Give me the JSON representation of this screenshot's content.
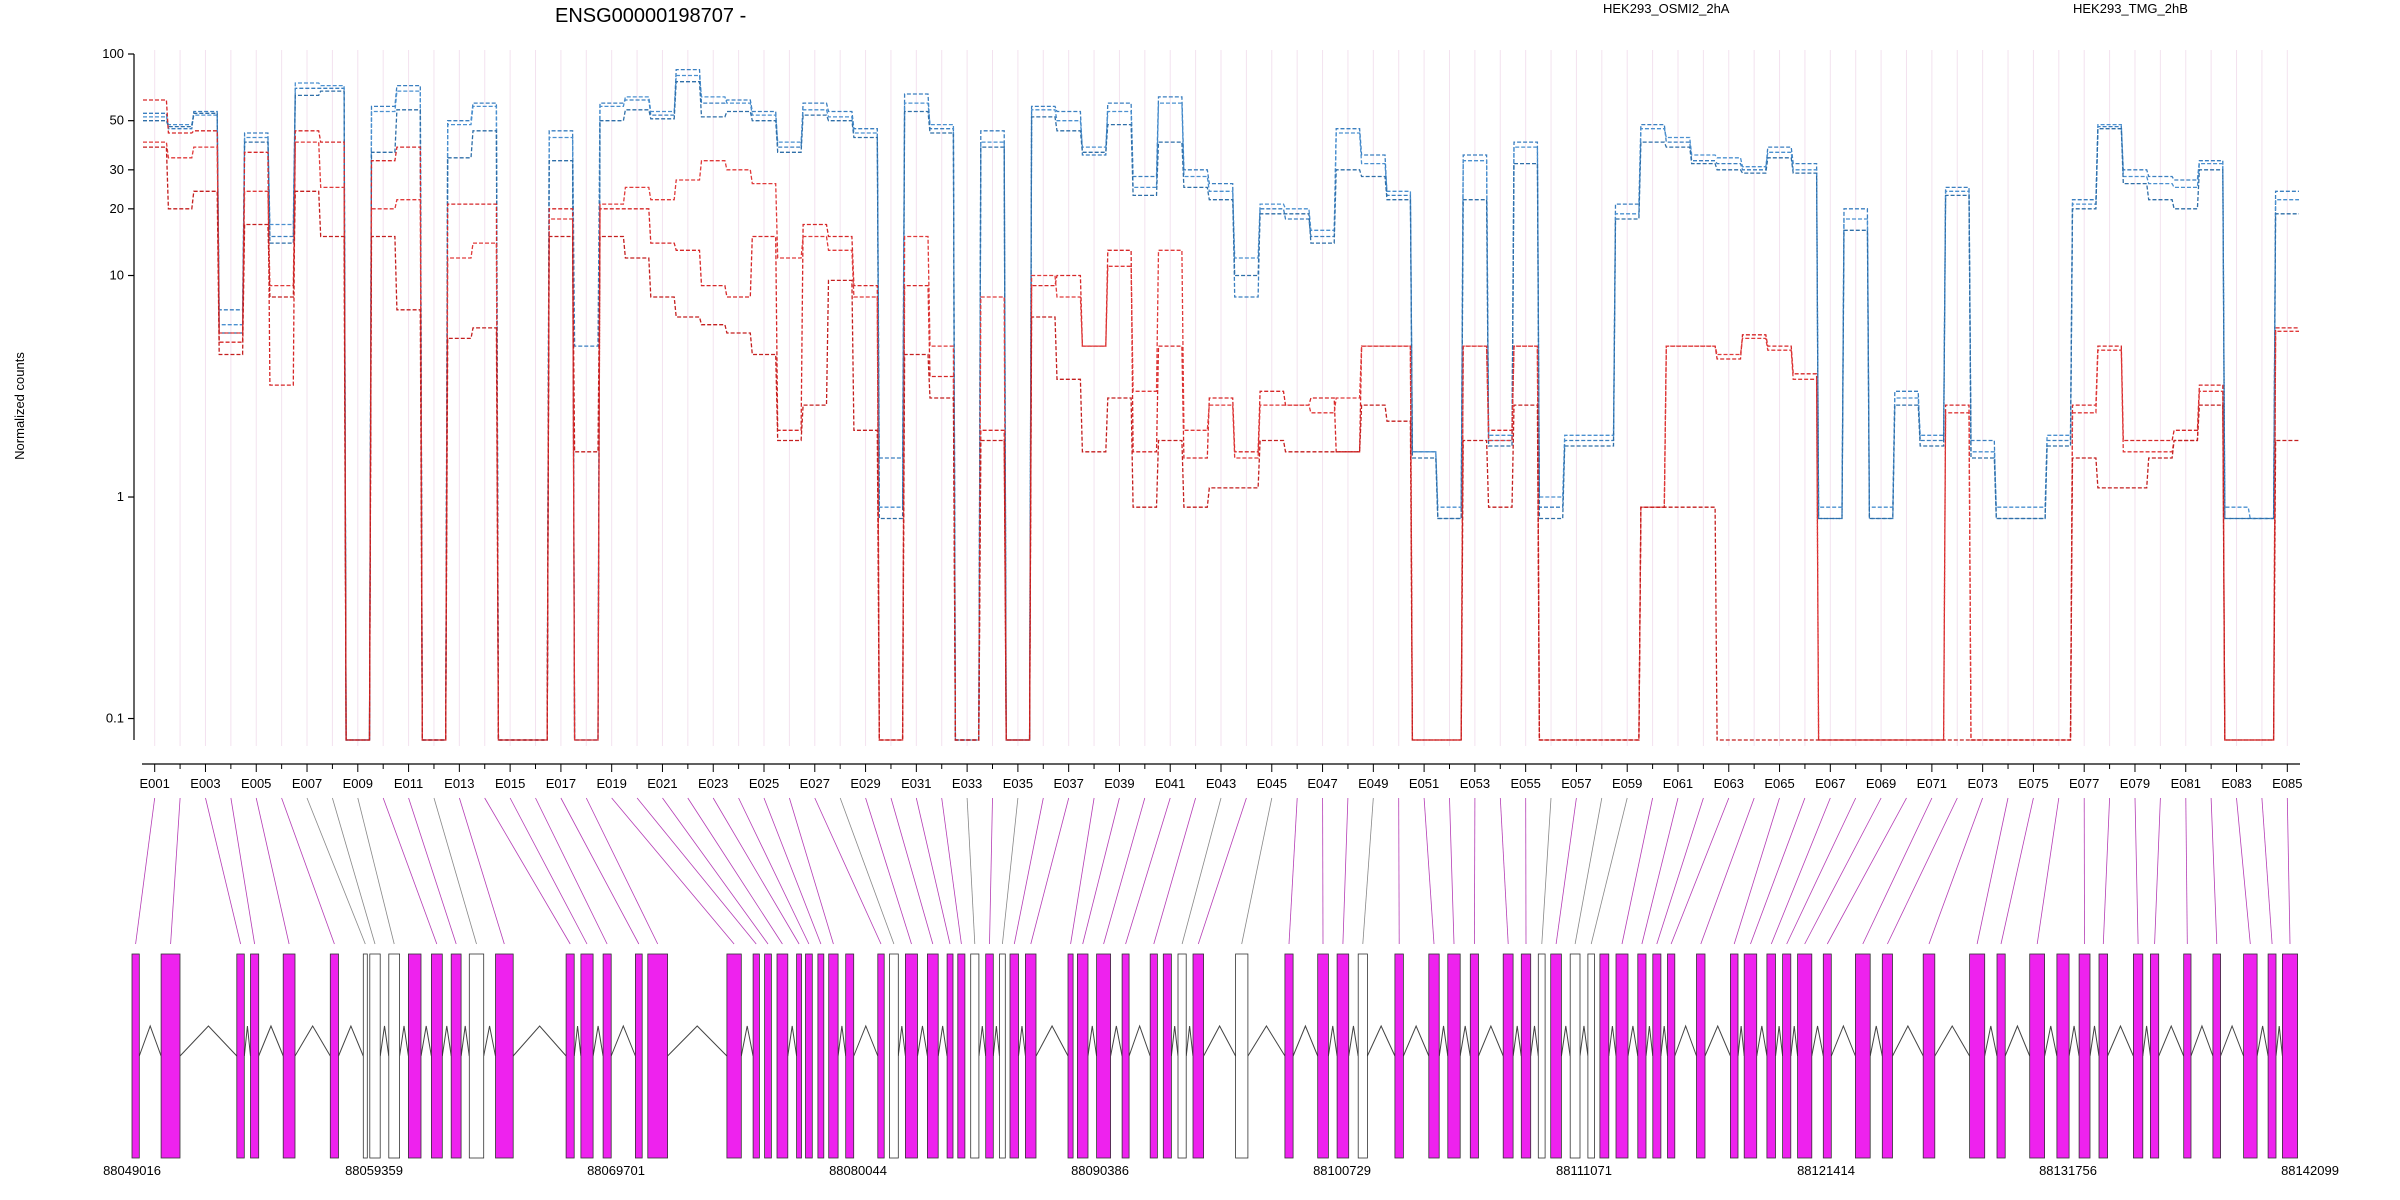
{
  "chart_data": {
    "type": "line",
    "title": "ENSG00000198707 -",
    "ylabel": "Normalized counts",
    "yscale": "log",
    "ylim": [
      0.08,
      100
    ],
    "yticks": [
      {
        "v": 0.1,
        "label": "0.1"
      },
      {
        "v": 1,
        "label": "1"
      },
      {
        "v": 10,
        "label": "10"
      },
      {
        "v": 20,
        "label": "20"
      },
      {
        "v": 30,
        "label": "30"
      },
      {
        "v": 50,
        "label": "50"
      },
      {
        "v": 100,
        "label": "100"
      }
    ],
    "exon_ticks": [
      "E001",
      "E003",
      "E005",
      "E007",
      "E009",
      "E011",
      "E013",
      "E015",
      "E017",
      "E019",
      "E021",
      "E023",
      "E025",
      "E027",
      "E029",
      "E031",
      "E033",
      "E035",
      "E037",
      "E039",
      "E041",
      "E043",
      "E045",
      "E047",
      "E049",
      "E051",
      "E053",
      "E055",
      "E057",
      "E059",
      "E061",
      "E063",
      "E065",
      "E067",
      "E069",
      "E071",
      "E073",
      "E075",
      "E077",
      "E079",
      "E081",
      "E083",
      "E085"
    ],
    "legend": [
      {
        "name": "HEK293_OSMI2_2hA",
        "color": "#d62728"
      },
      {
        "name": "HEK293_TMG_2hB",
        "color": "#1f77b4"
      }
    ],
    "genomic_ticks": [
      "88049016",
      "88059359",
      "88069701",
      "88080044",
      "88090386",
      "88100729",
      "88111071",
      "88121414",
      "88131756",
      "88142099"
    ],
    "genomic_range": [
      88049016,
      88142099
    ],
    "series": [
      {
        "name": "HEK293_TMG_2hB",
        "color": "#3a7fc0",
        "values": [
          54,
          46,
          55,
          7,
          44,
          15,
          70,
          70,
          0.07,
          58,
          72,
          0.07,
          50,
          60,
          0.07,
          0.07,
          45,
          4.8,
          60,
          62,
          53,
          85,
          60,
          62,
          55,
          38,
          60,
          55,
          46,
          1.5,
          66,
          46,
          0.07,
          45,
          0.07,
          58,
          55,
          35,
          60,
          28,
          64,
          30,
          26,
          8,
          20,
          18,
          15,
          46,
          35,
          23,
          1.6,
          0.8,
          35,
          1.8,
          40,
          0.9,
          1.8,
          1.8,
          21,
          48,
          40,
          33,
          32,
          30,
          38,
          32,
          0.8,
          20,
          0.8,
          3,
          1.8,
          25,
          1.8,
          0.8,
          0.8,
          1.8,
          22,
          47,
          30,
          28,
          27,
          33,
          0.8,
          0.8,
          24
        ]
      },
      {
        "name": "HEK293_TMG_2hB",
        "color": "#4a90d0",
        "values": [
          52,
          48,
          53,
          6,
          42,
          17,
          74,
          72,
          0.07,
          55,
          68,
          0.07,
          48,
          58,
          0.07,
          0.07,
          42,
          0.07,
          58,
          64,
          55,
          80,
          64,
          60,
          53,
          40,
          56,
          52,
          44,
          0.9,
          60,
          48,
          0.07,
          40,
          0.07,
          56,
          50,
          38,
          55,
          25,
          60,
          28,
          24,
          12,
          21,
          20,
          16,
          44,
          32,
          24,
          1.6,
          0.9,
          33,
          1.9,
          38,
          1,
          1.9,
          1.9,
          19,
          46,
          42,
          35,
          34,
          31,
          36,
          30,
          0.9,
          18,
          0.9,
          2.8,
          1.9,
          24,
          1.6,
          0.9,
          0.9,
          1.9,
          21,
          48,
          28,
          26,
          25,
          32,
          0.9,
          0.8,
          22
        ]
      },
      {
        "name": "HEK293_TMG_2hB",
        "color": "#2f6fa8",
        "values": [
          50,
          47,
          54,
          5.5,
          40,
          14,
          65,
          68,
          0.07,
          36,
          56,
          0.07,
          34,
          45,
          0.07,
          0.07,
          33,
          0.07,
          50,
          56,
          51,
          75,
          52,
          55,
          50,
          36,
          53,
          50,
          42,
          0.8,
          55,
          44,
          0.07,
          38,
          0.07,
          52,
          45,
          36,
          48,
          23,
          40,
          25,
          22,
          10,
          19,
          19,
          14,
          30,
          28,
          22,
          1.5,
          0.8,
          22,
          1.7,
          32,
          0.8,
          1.7,
          1.7,
          18,
          40,
          38,
          32,
          30,
          29,
          34,
          29,
          0.8,
          16,
          0.8,
          2.6,
          1.7,
          23,
          1.5,
          0.8,
          0.8,
          1.7,
          20,
          46,
          26,
          22,
          20,
          30,
          0.8,
          0.8,
          19
        ]
      },
      {
        "name": "HEK293_OSMI2_2hA",
        "color": "#d62728",
        "values": [
          62,
          44,
          45,
          5,
          36,
          3.2,
          45,
          40,
          0.07,
          33,
          38,
          0.07,
          21,
          21,
          0.07,
          0.07,
          20,
          0.07,
          20,
          20,
          14,
          13,
          9,
          8,
          15,
          2,
          17,
          15,
          9,
          0.07,
          9,
          3.5,
          0.07,
          2,
          0.07,
          9,
          10,
          4.8,
          13,
          1.6,
          4.8,
          1.5,
          2.8,
          1.6,
          3,
          2.6,
          2.8,
          1.6,
          4.8,
          4.8,
          0.07,
          0.07,
          4.8,
          2,
          4.8,
          0.07,
          0.07,
          0.07,
          0.07,
          0.9,
          4.8,
          4.8,
          4.2,
          5.4,
          4.8,
          3.6,
          0.07,
          0.07,
          0.07,
          0.07,
          0.07,
          2.6,
          0.07,
          0.07,
          0.07,
          0.07,
          2.6,
          4.8,
          1.8,
          1.8,
          2,
          3.2,
          0.07,
          0.07,
          5.8
        ]
      },
      {
        "name": "HEK293_OSMI2_2hA",
        "color": "#e03a3a",
        "values": [
          40,
          34,
          38,
          5.5,
          24,
          9,
          40,
          25,
          0.07,
          20,
          22,
          0.07,
          12,
          14,
          0.07,
          0.07,
          18,
          0.07,
          21,
          25,
          22,
          27,
          33,
          30,
          26,
          12,
          15,
          13,
          8,
          0.07,
          15,
          4.8,
          0.07,
          8,
          0.07,
          10,
          8,
          4.8,
          11,
          3,
          13,
          2,
          2.6,
          1.5,
          2.6,
          2.6,
          2.4,
          2.8,
          4.8,
          4.8,
          0.07,
          0.07,
          4.8,
          1.8,
          4.8,
          0.07,
          0.07,
          0.07,
          0.07,
          0.9,
          4.8,
          4.8,
          4.4,
          5.2,
          4.6,
          3.4,
          0.07,
          0.07,
          0.07,
          0.07,
          0.07,
          2.4,
          0.07,
          0.07,
          0.07,
          0.07,
          2.4,
          4.6,
          1.6,
          1.6,
          1.8,
          3,
          0.07,
          0.07,
          5.6
        ]
      },
      {
        "name": "HEK293_OSMI2_2hA",
        "color": "#c41f1f",
        "values": [
          38,
          20,
          24,
          4.4,
          17,
          8,
          24,
          15,
          0.07,
          15,
          7,
          0.07,
          5.2,
          5.8,
          0.07,
          0.07,
          15,
          1.6,
          15,
          12,
          8,
          6.5,
          6,
          5.5,
          4.4,
          1.8,
          2.6,
          9.5,
          2,
          0.07,
          4.4,
          2.8,
          0.07,
          1.8,
          0.07,
          6.5,
          3.4,
          1.6,
          2.8,
          0.9,
          1.8,
          0.9,
          1.1,
          1.1,
          1.8,
          1.6,
          1.6,
          1.6,
          2.6,
          2.2,
          0.07,
          0.07,
          1.8,
          0.9,
          2.6,
          0.07,
          0.07,
          0.07,
          0.07,
          0.9,
          0.9,
          0.9,
          0.07,
          0.07,
          0.07,
          0.07,
          0.07,
          0.07,
          0.07,
          0.07,
          0.07,
          0.07,
          0.07,
          0.07,
          0.07,
          0.07,
          1.5,
          1.1,
          1.1,
          1.5,
          1.8,
          2.6,
          0.07,
          0.07,
          1.8
        ]
      }
    ],
    "gene_model": {
      "exon_starts": [
        88049016,
        88050260,
        88053496,
        88054080,
        88055480,
        88057490,
        88058900,
        88059180,
        88059990,
        88060830,
        88061810,
        88062660,
        88063430,
        88064550,
        88067570,
        88068200,
        88069150,
        88070530,
        88071060,
        88074440,
        88075560,
        88076050,
        88076580,
        88077420,
        88077800,
        88078330,
        88078790,
        88079520,
        88080890,
        88081390,
        88082070,
        88083010,
        88083850,
        88084310,
        88084860,
        88085500,
        88086090,
        88086540,
        88087200,
        88089020,
        88089420,
        88090240,
        88091330,
        88092530,
        88093090,
        88093720,
        88094360,
        88096180,
        88098290,
        88099690,
        88100520,
        88101420,
        88102990,
        88104440,
        88105250,
        88106210,
        88107620,
        88108390,
        88109120,
        88109650,
        88110480,
        88111240,
        88111750,
        88112440,
        88113370,
        88114010,
        88114640,
        88115880,
        88117330,
        88117920,
        88118890,
        88119560,
        88120200,
        88121300,
        88122670,
        88123820,
        88125570,
        88127550,
        88128720,
        88130120,
        88131280,
        88132230,
        88133080,
        88134550,
        88135280,
        88136700,
        88137950,
        88139260,
        88140310,
        88140920
      ],
      "highlight": [
        0,
        1,
        2,
        3,
        4,
        5,
        9,
        10,
        11,
        13,
        14,
        15,
        16,
        17,
        18,
        19,
        20,
        21,
        22,
        23,
        24,
        25,
        26,
        27,
        28,
        30,
        31,
        32,
        33,
        35,
        37,
        38,
        39,
        40,
        41,
        42,
        43,
        44,
        46,
        48,
        49,
        50,
        52,
        53,
        54,
        55,
        56,
        57,
        59,
        62,
        63,
        64,
        65,
        66,
        67,
        68,
        69,
        70,
        71,
        72,
        73,
        74,
        75,
        76,
        77,
        78,
        79,
        80,
        81,
        82,
        83,
        84,
        85,
        86,
        87,
        88,
        89
      ]
    }
  }
}
